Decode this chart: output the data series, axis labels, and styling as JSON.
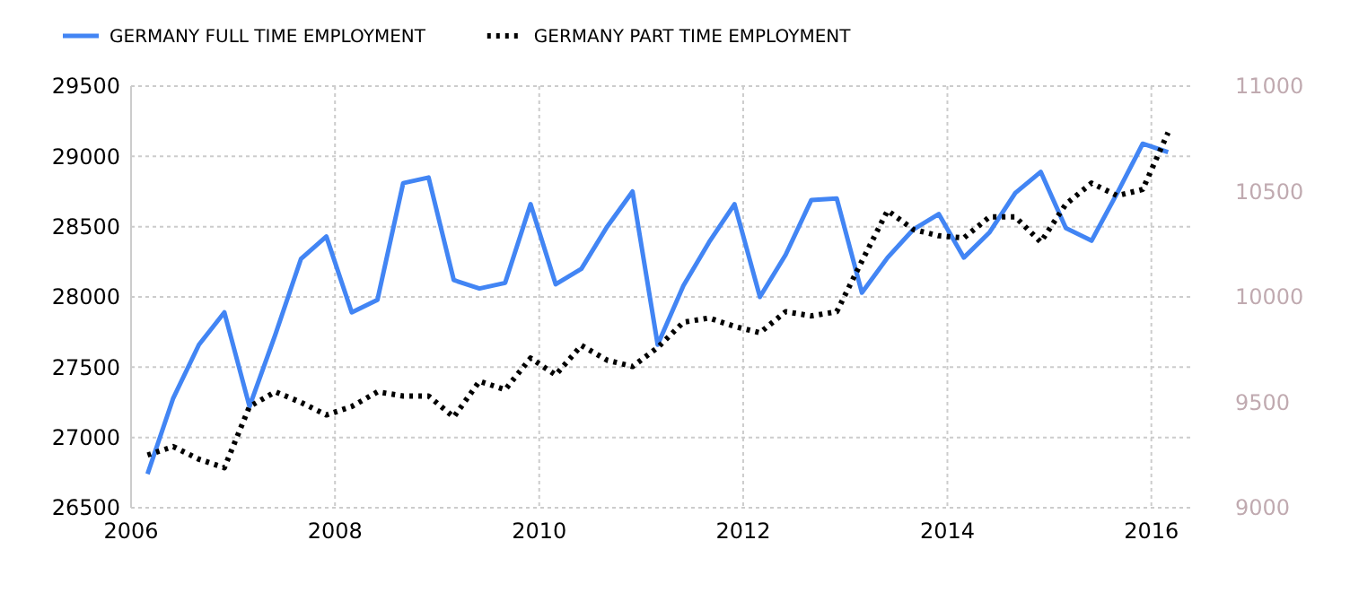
{
  "chart_data": {
    "type": "line",
    "legend": "top left",
    "grid": true,
    "marker": "none",
    "x": [
      "2006-03",
      "2006-06",
      "2006-09",
      "2006-12",
      "2007-03",
      "2007-06",
      "2007-09",
      "2007-12",
      "2008-03",
      "2008-06",
      "2008-09",
      "2008-12",
      "2009-03",
      "2009-06",
      "2009-09",
      "2009-12",
      "2010-03",
      "2010-06",
      "2010-09",
      "2010-12",
      "2011-03",
      "2011-06",
      "2011-09",
      "2011-12",
      "2012-03",
      "2012-06",
      "2012-09",
      "2012-12",
      "2013-03",
      "2013-06",
      "2013-09",
      "2013-12",
      "2014-03",
      "2014-06",
      "2014-09",
      "2014-12",
      "2015-03",
      "2015-06",
      "2015-09",
      "2015-12",
      "2016-03"
    ],
    "xlim": [
      "2006-01",
      "2016-06"
    ],
    "xticks": [
      {
        "value": "2006-01",
        "label": "2006"
      },
      {
        "value": "2008-01",
        "label": "2008"
      },
      {
        "value": "2010-01",
        "label": "2010"
      },
      {
        "value": "2012-01",
        "label": "2012"
      },
      {
        "value": "2014-01",
        "label": "2014"
      },
      {
        "value": "2016-01",
        "label": "2016"
      }
    ],
    "ylim": [
      26500,
      29500
    ],
    "yticks": [
      26500,
      27000,
      27500,
      28000,
      28500,
      29000,
      29500
    ],
    "y2lim": [
      9000,
      11000
    ],
    "y2ticks": [
      9000,
      9500,
      10000,
      10500,
      11000
    ],
    "series": [
      {
        "name": "GERMANY FULL TIME EMPLOYMENT",
        "color": "#4285f4",
        "line_style": "solid",
        "values": [
          26740,
          27280,
          27660,
          27890,
          27220,
          27730,
          28270,
          28430,
          27890,
          27980,
          28810,
          28850,
          28120,
          28060,
          28100,
          28660,
          28090,
          28200,
          28500,
          28750,
          27660,
          28080,
          28390,
          28660,
          28000,
          28300,
          28690,
          28700,
          28030,
          28280,
          28480,
          28590,
          28280,
          28460,
          28740,
          28890,
          28490,
          28400,
          28740,
          29090,
          29030
        ]
      },
      {
        "name": "GERMANY PART TIME EMPLOYMENT",
        "color": "#000000",
        "line_style": "dotted",
        "axis": "y2",
        "values": [
          9250,
          9290,
          9230,
          9190,
          9480,
          9550,
          9500,
          9440,
          9480,
          9550,
          9530,
          9530,
          9430,
          9600,
          9560,
          9710,
          9630,
          9770,
          9700,
          9670,
          9760,
          9880,
          9900,
          9860,
          9830,
          9930,
          9910,
          9930,
          10170,
          10410,
          10320,
          10290,
          10280,
          10380,
          10380,
          10260,
          10440,
          10540,
          10480,
          10510,
          10780
        ]
      }
    ]
  }
}
